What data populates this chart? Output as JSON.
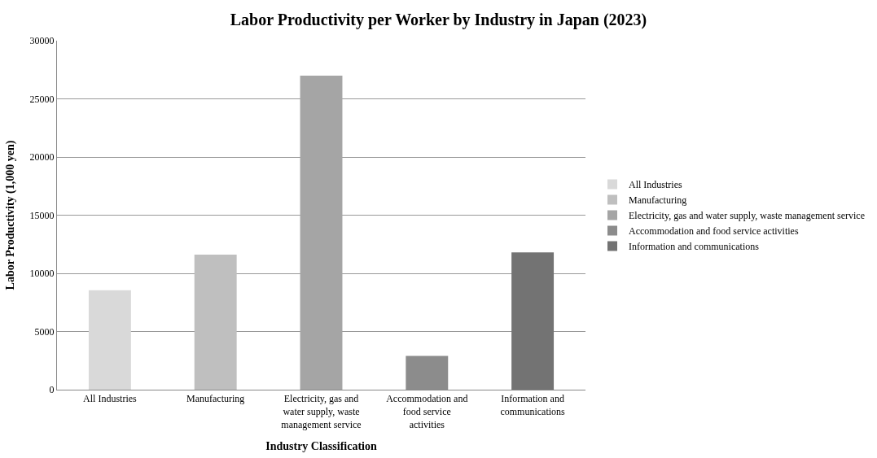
{
  "chart_data": {
    "type": "bar",
    "title": "Labor Productivity per Worker by Industry in Japan (2023)",
    "xlabel": "Industry Classification",
    "ylabel": "Labor Productivity (1,000 yen)",
    "categories": [
      "All Industries",
      "Manufacturing",
      "Electricity, gas and water supply, waste management service",
      "Accommodation and food service activities",
      "Information and communications"
    ],
    "series": [
      {
        "name": "All Industries",
        "color": "#d9d9d9",
        "values": [
          8550,
          null,
          null,
          null,
          null
        ]
      },
      {
        "name": "Manufacturing",
        "color": "#bfbfbf",
        "values": [
          null,
          11600,
          null,
          null,
          null
        ]
      },
      {
        "name": "Electricity, gas and water supply, waste management service",
        "color": "#a5a5a5",
        "values": [
          null,
          null,
          27000,
          null,
          null
        ]
      },
      {
        "name": "Accommodation and food service activities",
        "color": "#8c8c8c",
        "values": [
          null,
          null,
          null,
          2900,
          null
        ]
      },
      {
        "name": "Information and communications",
        "color": "#737373",
        "values": [
          null,
          null,
          null,
          null,
          11800
        ]
      }
    ],
    "ylim": [
      0,
      30000
    ],
    "yticks": [
      0,
      5000,
      10000,
      15000,
      20000,
      25000,
      30000
    ],
    "grid": "y",
    "legend": "right"
  }
}
